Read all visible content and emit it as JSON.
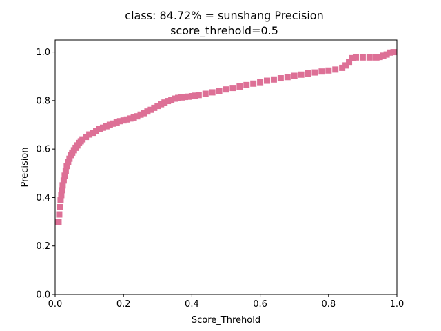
{
  "chart_data": {
    "type": "scatter",
    "title": "class: 84.72% = sunshang Precision",
    "subtitle": "score_threhold=0.5",
    "xlabel": "Score_Threhold",
    "ylabel": "Precision",
    "xlim": [
      0.0,
      1.0
    ],
    "ylim": [
      0.0,
      1.05
    ],
    "xticks": [
      "0.0",
      "0.2",
      "0.4",
      "0.6",
      "0.8",
      "1.0"
    ],
    "yticks": [
      "0.0",
      "0.2",
      "0.4",
      "0.6",
      "0.8",
      "1.0"
    ],
    "grid": false,
    "marker": "square",
    "color": "#dd7096",
    "series": [
      {
        "x": [
          0.01,
          0.012,
          0.014,
          0.016,
          0.018,
          0.02,
          0.022,
          0.025,
          0.028,
          0.031,
          0.034,
          0.038,
          0.042,
          0.046,
          0.05,
          0.055,
          0.06,
          0.065,
          0.07,
          0.075,
          0.08,
          0.09,
          0.1,
          0.11,
          0.12,
          0.13,
          0.14,
          0.15,
          0.16,
          0.17,
          0.18,
          0.19,
          0.2,
          0.21,
          0.22,
          0.23,
          0.24,
          0.25,
          0.26,
          0.27,
          0.28,
          0.29,
          0.3,
          0.31,
          0.32,
          0.33,
          0.34,
          0.35,
          0.36,
          0.37,
          0.38,
          0.39,
          0.4,
          0.41,
          0.42,
          0.44,
          0.46,
          0.48,
          0.5,
          0.52,
          0.54,
          0.56,
          0.58,
          0.6,
          0.62,
          0.64,
          0.66,
          0.68,
          0.7,
          0.72,
          0.74,
          0.76,
          0.78,
          0.8,
          0.82,
          0.84,
          0.85,
          0.86,
          0.87,
          0.88,
          0.9,
          0.92,
          0.94,
          0.95,
          0.96,
          0.97,
          0.98,
          0.99
        ],
        "y": [
          0.3,
          0.33,
          0.36,
          0.39,
          0.41,
          0.43,
          0.45,
          0.47,
          0.49,
          0.51,
          0.53,
          0.545,
          0.56,
          0.575,
          0.585,
          0.595,
          0.605,
          0.615,
          0.625,
          0.632,
          0.64,
          0.65,
          0.66,
          0.667,
          0.675,
          0.682,
          0.688,
          0.694,
          0.7,
          0.705,
          0.71,
          0.715,
          0.718,
          0.722,
          0.726,
          0.73,
          0.735,
          0.742,
          0.748,
          0.755,
          0.762,
          0.77,
          0.778,
          0.785,
          0.792,
          0.798,
          0.803,
          0.808,
          0.811,
          0.813,
          0.815,
          0.816,
          0.818,
          0.82,
          0.823,
          0.828,
          0.834,
          0.84,
          0.846,
          0.852,
          0.858,
          0.864,
          0.87,
          0.876,
          0.882,
          0.887,
          0.892,
          0.897,
          0.902,
          0.907,
          0.912,
          0.916,
          0.92,
          0.924,
          0.928,
          0.935,
          0.945,
          0.96,
          0.975,
          0.978,
          0.978,
          0.978,
          0.978,
          0.98,
          0.985,
          0.99,
          0.998,
          1.0
        ]
      }
    ]
  }
}
